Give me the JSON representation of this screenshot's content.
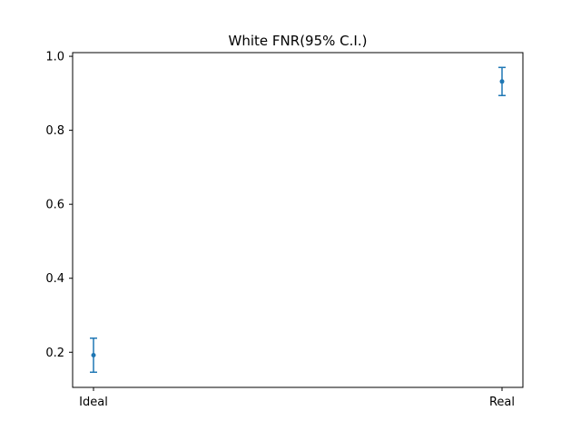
{
  "chart_data": {
    "type": "scatter",
    "title": "White FNR(95% C.I.)",
    "xlabel": "",
    "ylabel": "",
    "categories": [
      "Ideal",
      "Real"
    ],
    "series": [
      {
        "values": [
          0.192,
          0.932
        ],
        "error_lower": [
          0.146,
          0.894
        ],
        "error_upper": [
          0.238,
          0.97
        ]
      }
    ],
    "ylim": [
      0.105,
      1.01
    ],
    "yticks": [
      0.2,
      0.4,
      0.6,
      0.8,
      1.0
    ],
    "ytick_labels": [
      "0.2",
      "0.4",
      "0.6",
      "0.8",
      "1.0"
    ],
    "grid": false,
    "legend": "none",
    "color": "#1f77b4"
  }
}
